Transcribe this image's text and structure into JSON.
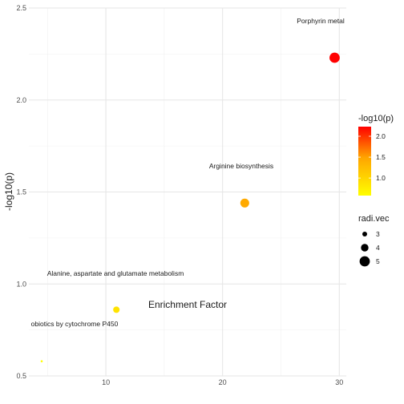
{
  "chart_data": {
    "type": "scatter",
    "title": "",
    "xlabel": "Enrichment Factor",
    "ylabel": "-log10(p)",
    "xlim": [
      3.4,
      30.6
    ],
    "ylim": [
      0.5,
      2.5
    ],
    "x_ticks": [
      10,
      20,
      30
    ],
    "y_ticks": [
      0.5,
      1.0,
      1.5,
      2.0,
      2.5
    ],
    "y_tick_labels": [
      "0.5",
      "1.0",
      "1.5",
      "2.0",
      "2.5"
    ],
    "grid": true,
    "points": [
      {
        "label": "Porphyrin metal",
        "x": 29.6,
        "y": 2.23,
        "radi_vec": 5
      },
      {
        "label": "Arginine biosynthesis",
        "x": 21.9,
        "y": 1.44,
        "radi_vec": 4.5
      },
      {
        "label": "Alanine, aspartate and glutamate metabolism",
        "x": 10.9,
        "y": 0.86,
        "radi_vec": 3.6
      },
      {
        "label": "obiotics by cytochrome P450",
        "x": 4.5,
        "y": 0.58,
        "radi_vec": 2
      }
    ],
    "color_legend": {
      "title": "-log10(p)",
      "low_color": "#ffff00",
      "mid_color": "#ffa500",
      "high_color": "#ff0000",
      "range": [
        0.58,
        2.23
      ],
      "ticks": [
        1.0,
        1.5,
        2.0
      ],
      "tick_labels": [
        "1.0",
        "1.5",
        "2.0"
      ]
    },
    "size_legend": {
      "title": "radi.vec",
      "values": [
        3,
        4,
        5
      ],
      "labels": [
        "3",
        "4",
        "5"
      ]
    },
    "legend_placement": "right"
  }
}
